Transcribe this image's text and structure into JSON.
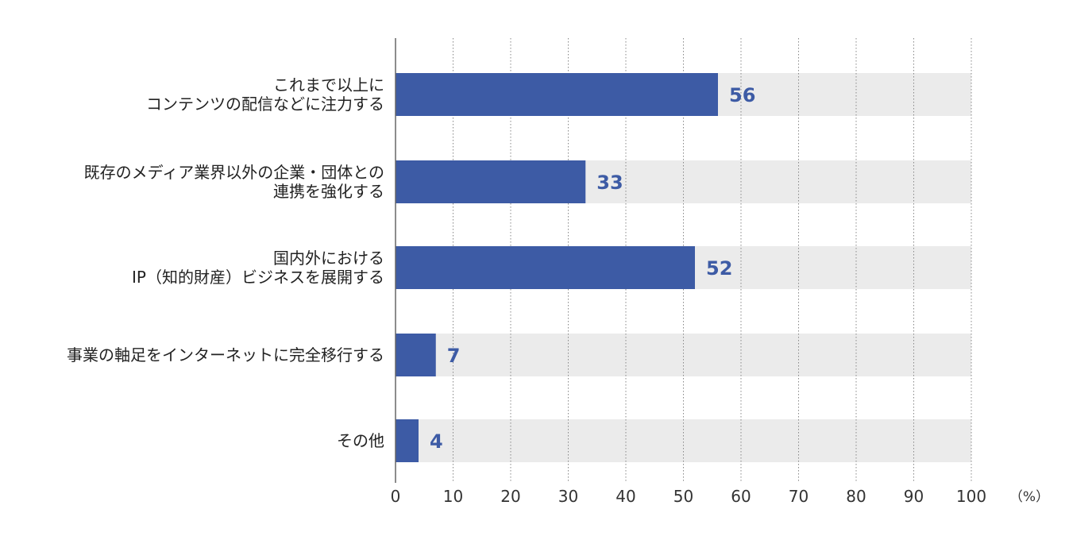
{
  "colors": {
    "bar": "#3d5ba5",
    "track": "#ebebeb",
    "grid": "#888888",
    "axis": "#666666",
    "label_value": "#3d5ba5"
  },
  "chart_data": {
    "type": "bar",
    "orientation": "horizontal",
    "categories": [
      [
        "これまで以上に",
        "コンテンツの配信などに注力する"
      ],
      [
        "既存のメディア業界以外の企業・団体との",
        "連携を強化する"
      ],
      [
        "国内外における",
        "IP（知的財産）ビジネスを展開する"
      ],
      [
        "事業の軸足をインターネットに完全移行する"
      ],
      [
        "その他"
      ]
    ],
    "values": [
      56,
      33,
      52,
      7,
      4
    ],
    "xlim": [
      0,
      100
    ],
    "xticks": [
      0,
      10,
      20,
      30,
      40,
      50,
      60,
      70,
      80,
      90,
      100
    ],
    "unit": "（%）",
    "grid": "vertical-dotted"
  }
}
